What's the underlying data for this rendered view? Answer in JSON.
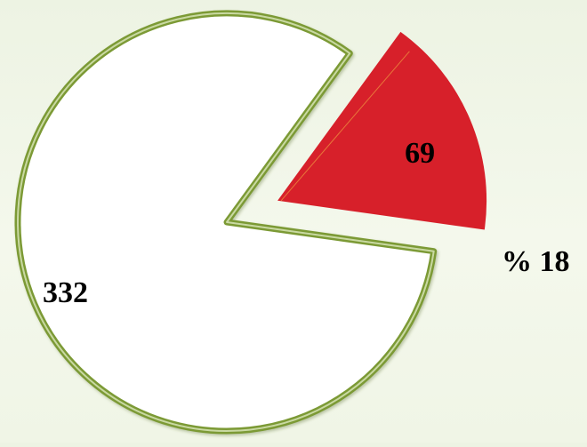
{
  "chart_data": {
    "type": "pie",
    "title": "",
    "slices": [
      {
        "value": 332,
        "label": "332",
        "color": "#ffffff",
        "border_color": "#7c9a36",
        "exploded": false
      },
      {
        "value": 69,
        "label": "69",
        "color": "#d7202a",
        "exploded": true,
        "percent_label": "% 18"
      }
    ]
  }
}
